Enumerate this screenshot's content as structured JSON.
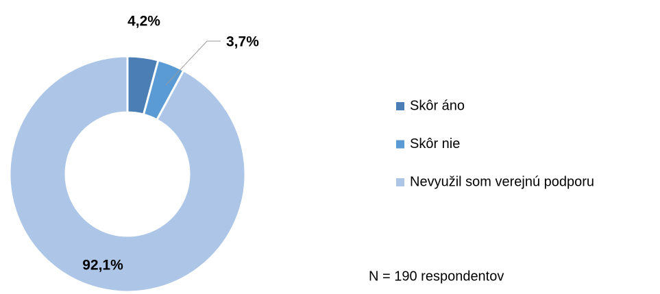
{
  "chart_data": {
    "type": "donut",
    "categories": [
      "Skôr áno",
      "Skôr nie",
      "Nevyužil som verejnú podporu"
    ],
    "values": [
      4.2,
      3.7,
      92.1
    ],
    "value_labels": [
      "4,2%",
      "3,7%",
      "92,1%"
    ],
    "colors": [
      "#4a7eb5",
      "#5b9bd5",
      "#adc6e7"
    ],
    "legend": "right",
    "annotation": "N = 190 respondentov"
  }
}
